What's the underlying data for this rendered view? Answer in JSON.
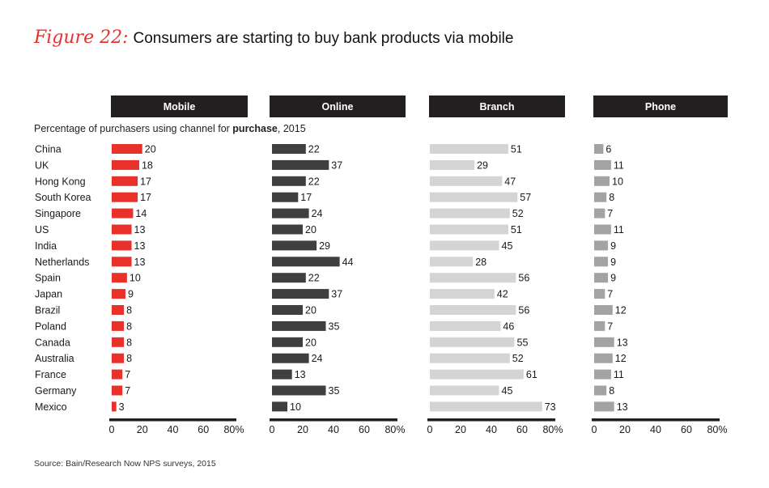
{
  "figure_label": "Figure 22:",
  "title": "Consumers are starting to buy bank products via mobile",
  "subtitle_prefix": "Percentage of purchasers using channel for ",
  "subtitle_bold": "purchase",
  "subtitle_suffix": ", 2015",
  "source": "Source: Bain/Research Now NPS surveys, 2015",
  "colors": {
    "header_bg": "#231f20",
    "mobile": "#e8312a",
    "online": "#3f3f3f",
    "branch": "#d4d4d4",
    "phone": "#a3a3a3"
  },
  "chart_data": {
    "type": "bar",
    "orientation": "horizontal",
    "title": "Consumers are starting to buy bank products via mobile",
    "ylabel": "Percentage of purchasers using channel for purchase, 2015",
    "xlim": [
      0,
      80
    ],
    "x_ticks": [
      "0",
      "20",
      "40",
      "60",
      "80%"
    ],
    "categories": [
      "China",
      "UK",
      "Hong Kong",
      "South Korea",
      "Singapore",
      "US",
      "India",
      "Netherlands",
      "Spain",
      "Japan",
      "Brazil",
      "Poland",
      "Canada",
      "Australia",
      "France",
      "Germany",
      "Mexico"
    ],
    "series": [
      {
        "name": "Mobile",
        "color": "#e8312a",
        "values": [
          20,
          18,
          17,
          17,
          14,
          13,
          13,
          13,
          10,
          9,
          8,
          8,
          8,
          8,
          7,
          7,
          3
        ]
      },
      {
        "name": "Online",
        "color": "#3f3f3f",
        "values": [
          22,
          37,
          22,
          17,
          24,
          20,
          29,
          44,
          22,
          37,
          20,
          35,
          20,
          24,
          13,
          35,
          10
        ]
      },
      {
        "name": "Branch",
        "color": "#d4d4d4",
        "values": [
          51,
          29,
          47,
          57,
          52,
          51,
          45,
          28,
          56,
          42,
          56,
          46,
          55,
          52,
          61,
          45,
          73
        ]
      },
      {
        "name": "Phone",
        "color": "#a3a3a3",
        "values": [
          6,
          11,
          10,
          8,
          7,
          11,
          9,
          9,
          9,
          7,
          12,
          7,
          13,
          12,
          11,
          8,
          13
        ]
      }
    ]
  }
}
